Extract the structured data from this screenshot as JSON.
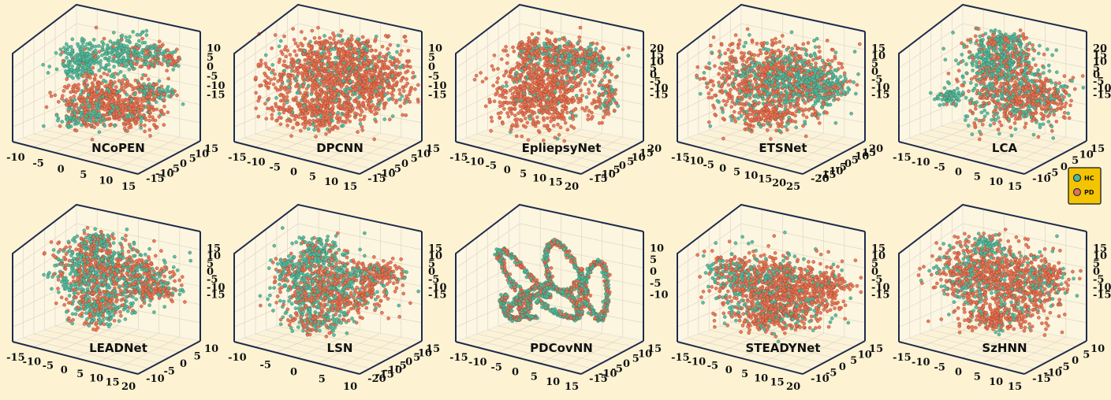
{
  "chart_data": [
    {
      "type": "scatter",
      "title": "NCoPEN",
      "x_ticks": [
        "-10",
        "-5",
        "0",
        "5",
        "10",
        "15"
      ],
      "y_ticks": [
        "-15",
        "-10",
        "-5",
        "0",
        "5",
        "10",
        "15"
      ],
      "z_ticks": [
        "-15",
        "-10",
        "-5",
        "0",
        "5",
        "10"
      ],
      "series": [
        {
          "name": "HC",
          "color": "#4fb89a"
        },
        {
          "name": "PD",
          "color": "#e8704f"
        }
      ]
    },
    {
      "type": "scatter",
      "title": "DPCNN",
      "x_ticks": [
        "-15",
        "-10",
        "-5",
        "0",
        "5",
        "10",
        "15"
      ],
      "y_ticks": [
        "-15",
        "-10",
        "-5",
        "0",
        "5",
        "10",
        "15"
      ],
      "z_ticks": [
        "-15",
        "-10",
        "-5",
        "0",
        "5",
        "10"
      ],
      "series": [
        {
          "name": "HC",
          "color": "#4fb89a"
        },
        {
          "name": "PD",
          "color": "#e8704f"
        }
      ]
    },
    {
      "type": "scatter",
      "title": "EpliepsyNet",
      "x_ticks": [
        "-15",
        "-10",
        "-5",
        "0",
        "5",
        "10",
        "15",
        "20"
      ],
      "y_ticks": [
        "-15",
        "-10",
        "-5",
        "0",
        "5",
        "10",
        "15",
        "20"
      ],
      "z_ticks": [
        "-15",
        "-10",
        "-5",
        "0",
        "5",
        "10",
        "15",
        "20"
      ],
      "series": [
        {
          "name": "HC",
          "color": "#4fb89a"
        },
        {
          "name": "PD",
          "color": "#e8704f"
        }
      ]
    },
    {
      "type": "scatter",
      "title": "ETSNet",
      "x_ticks": [
        "-15",
        "-10",
        "-5",
        "0",
        "5",
        "10",
        "15",
        "20",
        "25"
      ],
      "y_ticks": [
        "-20",
        "-15",
        "-10",
        "-5",
        "0",
        "5",
        "10",
        "15",
        "20"
      ],
      "z_ticks": [
        "-15",
        "-10",
        "-5",
        "0",
        "5",
        "10",
        "15"
      ],
      "series": [
        {
          "name": "HC",
          "color": "#4fb89a"
        },
        {
          "name": "PD",
          "color": "#e8704f"
        }
      ]
    },
    {
      "type": "scatter",
      "title": "LCA",
      "x_ticks": [
        "-15",
        "-10",
        "-5",
        "0",
        "5",
        "10",
        "15"
      ],
      "y_ticks": [
        "-10",
        "-5",
        "0",
        "5",
        "10",
        "15"
      ],
      "z_ticks": [
        "-15",
        "-10",
        "-5",
        "0",
        "5",
        "10",
        "15",
        "20"
      ],
      "series": [
        {
          "name": "HC",
          "color": "#4fb89a"
        },
        {
          "name": "PD",
          "color": "#e8704f"
        }
      ]
    },
    {
      "type": "scatter",
      "title": "LEADNet",
      "x_ticks": [
        "-15",
        "-10",
        "-5",
        "0",
        "5",
        "10",
        "15",
        "20"
      ],
      "y_ticks": [
        "-10",
        "-5",
        "0",
        "5",
        "10"
      ],
      "z_ticks": [
        "-15",
        "-10",
        "-5",
        "0",
        "5",
        "10",
        "15"
      ],
      "series": [
        {
          "name": "HC",
          "color": "#4fb89a"
        },
        {
          "name": "PD",
          "color": "#e8704f"
        }
      ]
    },
    {
      "type": "scatter",
      "title": "LSN",
      "x_ticks": [
        "-10",
        "-5",
        "0",
        "5",
        "10"
      ],
      "y_ticks": [
        "-20",
        "-15",
        "-10",
        "-5",
        "0",
        "5",
        "10",
        "15"
      ],
      "z_ticks": [
        "-15",
        "-10",
        "-5",
        "0",
        "5",
        "10",
        "15"
      ],
      "series": [
        {
          "name": "HC",
          "color": "#4fb89a"
        },
        {
          "name": "PD",
          "color": "#e8704f"
        }
      ]
    },
    {
      "type": "scatter",
      "title": "PDCovNN",
      "x_ticks": [
        "-15",
        "-10",
        "-5",
        "0",
        "5",
        "10",
        "15"
      ],
      "y_ticks": [
        "-15",
        "-10",
        "-5",
        "0",
        "5",
        "10",
        "15"
      ],
      "z_ticks": [
        "-10",
        "-5",
        "0",
        "5",
        "10"
      ],
      "series": [
        {
          "name": "HC",
          "color": "#4fb89a"
        },
        {
          "name": "PD",
          "color": "#e8704f"
        }
      ]
    },
    {
      "type": "scatter",
      "title": "STEADYNet",
      "x_ticks": [
        "-15",
        "-10",
        "-5",
        "0",
        "5",
        "10",
        "15",
        "20"
      ],
      "y_ticks": [
        "-10",
        "-5",
        "0",
        "5",
        "10",
        "15"
      ],
      "z_ticks": [
        "-15",
        "-10",
        "-5",
        "0",
        "5",
        "10",
        "15"
      ],
      "series": [
        {
          "name": "HC",
          "color": "#4fb89a"
        },
        {
          "name": "PD",
          "color": "#e8704f"
        }
      ]
    },
    {
      "type": "scatter",
      "title": "SzHNN",
      "x_ticks": [
        "-15",
        "-10",
        "-5",
        "0",
        "5",
        "10",
        "15"
      ],
      "y_ticks": [
        "-15",
        "-10",
        "-5",
        "0",
        "5",
        "10"
      ],
      "z_ticks": [
        "-15",
        "-10",
        "-5",
        "0",
        "5",
        "10",
        "15"
      ],
      "series": [
        {
          "name": "HC",
          "color": "#4fb89a"
        },
        {
          "name": "PD",
          "color": "#e8704f"
        }
      ]
    }
  ],
  "legend": {
    "items": [
      {
        "label": "HC",
        "color": "#4fb89a"
      },
      {
        "label": "PD",
        "color": "#e8704f"
      }
    ],
    "background": "#f5c400"
  }
}
